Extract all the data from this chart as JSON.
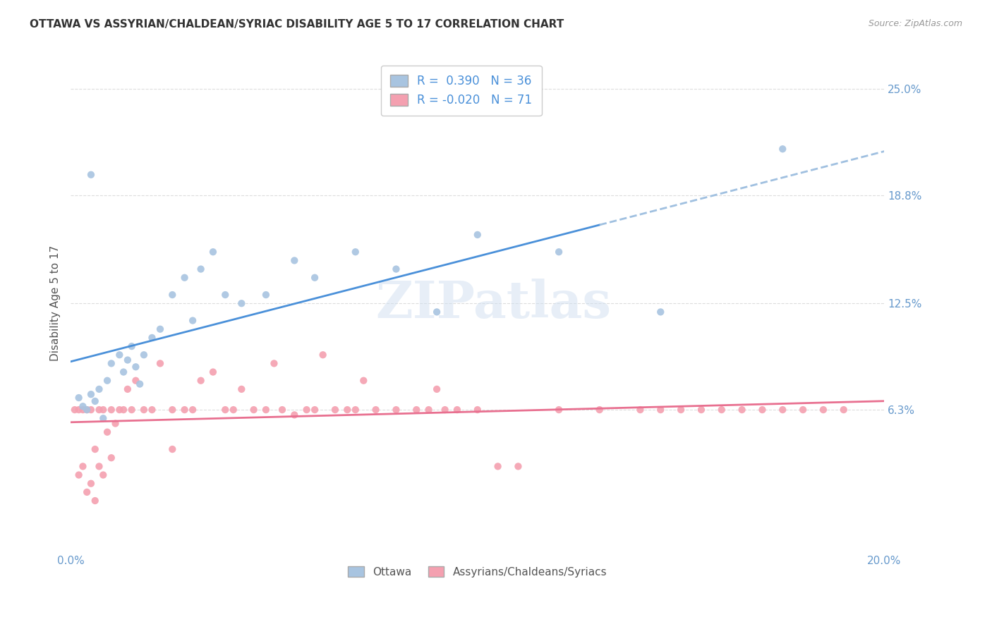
{
  "title": "OTTAWA VS ASSYRIAN/CHALDEAN/SYRIAC DISABILITY AGE 5 TO 17 CORRELATION CHART",
  "source": "Source: ZipAtlas.com",
  "ylabel": "Disability Age 5 to 17",
  "xlim": [
    0.0,
    0.2
  ],
  "ylim": [
    -0.02,
    0.27
  ],
  "yticks": [
    0.063,
    0.125,
    0.188,
    0.25
  ],
  "ytick_labels": [
    "6.3%",
    "12.5%",
    "18.8%",
    "25.0%"
  ],
  "xticks": [
    0.0,
    0.05,
    0.1,
    0.15,
    0.2
  ],
  "xtick_labels": [
    "0.0%",
    "",
    "",
    "",
    "20.0%"
  ],
  "ottawa_color": "#a8c4e0",
  "assyrian_color": "#f4a0b0",
  "trend_blue_color": "#4a90d9",
  "trend_pink_color": "#e87090",
  "trend_dash_color": "#a0c0e0",
  "R_ottawa": 0.39,
  "N_ottawa": 36,
  "R_assyrian": -0.02,
  "N_assyrian": 71,
  "legend_labels": [
    "Ottawa",
    "Assyrians/Chaldeans/Syriacs"
  ],
  "watermark": "ZIPatlas",
  "background_color": "#ffffff",
  "grid_color": "#dddddd",
  "title_color": "#333333",
  "axis_label_color": "#6699cc",
  "ottawa_x": [
    0.002,
    0.003,
    0.004,
    0.005,
    0.006,
    0.007,
    0.008,
    0.009,
    0.01,
    0.012,
    0.013,
    0.014,
    0.015,
    0.016,
    0.017,
    0.018,
    0.02,
    0.022,
    0.025,
    0.028,
    0.03,
    0.032,
    0.035,
    0.038,
    0.042,
    0.048,
    0.055,
    0.06,
    0.07,
    0.08,
    0.09,
    0.1,
    0.12,
    0.145,
    0.005,
    0.175
  ],
  "ottawa_y": [
    0.07,
    0.065,
    0.063,
    0.072,
    0.068,
    0.075,
    0.058,
    0.08,
    0.09,
    0.095,
    0.085,
    0.092,
    0.1,
    0.088,
    0.078,
    0.095,
    0.105,
    0.11,
    0.13,
    0.14,
    0.115,
    0.145,
    0.155,
    0.13,
    0.125,
    0.13,
    0.15,
    0.14,
    0.155,
    0.145,
    0.12,
    0.165,
    0.155,
    0.12,
    0.2,
    0.215
  ],
  "assyrian_x": [
    0.001,
    0.002,
    0.002,
    0.003,
    0.003,
    0.004,
    0.004,
    0.005,
    0.005,
    0.006,
    0.006,
    0.007,
    0.007,
    0.008,
    0.008,
    0.009,
    0.01,
    0.01,
    0.011,
    0.012,
    0.013,
    0.014,
    0.015,
    0.016,
    0.018,
    0.02,
    0.022,
    0.025,
    0.025,
    0.028,
    0.03,
    0.032,
    0.035,
    0.038,
    0.04,
    0.042,
    0.045,
    0.048,
    0.05,
    0.052,
    0.055,
    0.058,
    0.06,
    0.062,
    0.065,
    0.068,
    0.07,
    0.072,
    0.075,
    0.08,
    0.085,
    0.088,
    0.09,
    0.092,
    0.095,
    0.1,
    0.105,
    0.11,
    0.12,
    0.13,
    0.14,
    0.145,
    0.15,
    0.155,
    0.16,
    0.165,
    0.17,
    0.175,
    0.18,
    0.185,
    0.19
  ],
  "assyrian_y": [
    0.063,
    0.025,
    0.063,
    0.03,
    0.063,
    0.015,
    0.063,
    0.02,
    0.063,
    0.01,
    0.04,
    0.063,
    0.03,
    0.063,
    0.025,
    0.05,
    0.063,
    0.035,
    0.055,
    0.063,
    0.063,
    0.075,
    0.063,
    0.08,
    0.063,
    0.063,
    0.09,
    0.063,
    0.04,
    0.063,
    0.063,
    0.08,
    0.085,
    0.063,
    0.063,
    0.075,
    0.063,
    0.063,
    0.09,
    0.063,
    0.06,
    0.063,
    0.063,
    0.095,
    0.063,
    0.063,
    0.063,
    0.08,
    0.063,
    0.063,
    0.063,
    0.063,
    0.075,
    0.063,
    0.063,
    0.063,
    0.03,
    0.03,
    0.063,
    0.063,
    0.063,
    0.063,
    0.063,
    0.063,
    0.063,
    0.063,
    0.063,
    0.063,
    0.063,
    0.063,
    0.063
  ]
}
